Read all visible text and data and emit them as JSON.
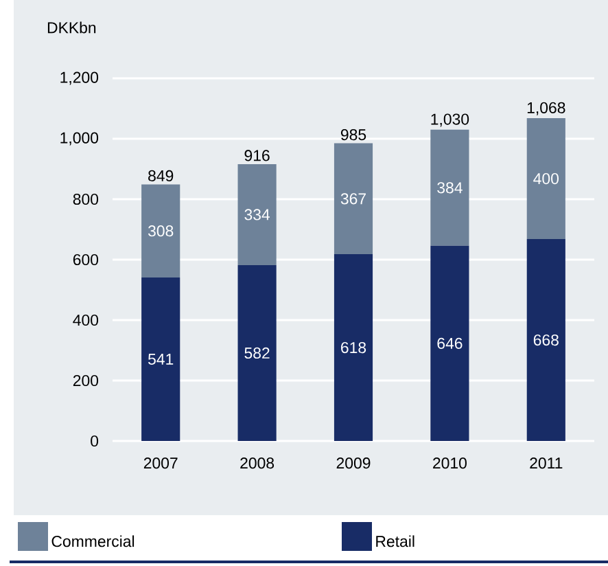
{
  "chart_data": {
    "type": "bar",
    "stacked": true,
    "ylabel": "DKKbn",
    "categories": [
      "2007",
      "2008",
      "2009",
      "2010",
      "2011"
    ],
    "series": [
      {
        "name": "Retail",
        "color": "#182c66",
        "values": [
          541,
          582,
          618,
          646,
          668
        ]
      },
      {
        "name": "Commercial",
        "color": "#6e8299",
        "values": [
          308,
          334,
          367,
          384,
          400
        ]
      }
    ],
    "totals": [
      "849",
      "916",
      "985",
      "1,030",
      "1,068"
    ],
    "ylim": [
      0,
      1200
    ],
    "yticks": [
      0,
      200,
      400,
      600,
      800,
      {
        "value": 1000,
        "label": "1,000"
      },
      {
        "value": 1200,
        "label": "1,200"
      }
    ],
    "grid": "y",
    "legend": "bottom",
    "data_labels": true
  }
}
